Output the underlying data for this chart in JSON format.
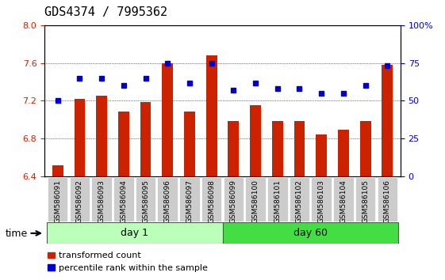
{
  "title": "GDS4374 / 7995362",
  "samples": [
    "GSM586091",
    "GSM586092",
    "GSM586093",
    "GSM586094",
    "GSM586095",
    "GSM586096",
    "GSM586097",
    "GSM586098",
    "GSM586099",
    "GSM586100",
    "GSM586101",
    "GSM586102",
    "GSM586103",
    "GSM586104",
    "GSM586105",
    "GSM586106"
  ],
  "bar_values": [
    6.52,
    7.22,
    7.25,
    7.09,
    7.19,
    7.6,
    7.09,
    7.68,
    6.99,
    7.15,
    6.99,
    6.99,
    6.84,
    6.89,
    6.99,
    7.58
  ],
  "dot_values": [
    50,
    65,
    65,
    60,
    65,
    75,
    62,
    75,
    57,
    62,
    58,
    58,
    55,
    55,
    60,
    73
  ],
  "ylim_left": [
    6.4,
    8.0
  ],
  "ylim_right": [
    0,
    100
  ],
  "yticks_left": [
    6.4,
    6.8,
    7.2,
    7.6,
    8.0
  ],
  "yticks_right": [
    0,
    25,
    50,
    75,
    100
  ],
  "ytick_labels_right": [
    "0",
    "25",
    "50",
    "75",
    "100%"
  ],
  "bar_color": "#cc2200",
  "dot_color": "#0000cc",
  "grid_color": "#000000",
  "day1_color": "#bbffbb",
  "day60_color": "#44dd44",
  "day1_samples": 8,
  "day60_samples": 8,
  "xlabel_time": "time",
  "label1": "day 1",
  "label2": "day 60",
  "legend_bar": "transformed count",
  "legend_dot": "percentile rank within the sample",
  "plot_bg_color": "#ffffff",
  "tick_box_color": "#cccccc"
}
